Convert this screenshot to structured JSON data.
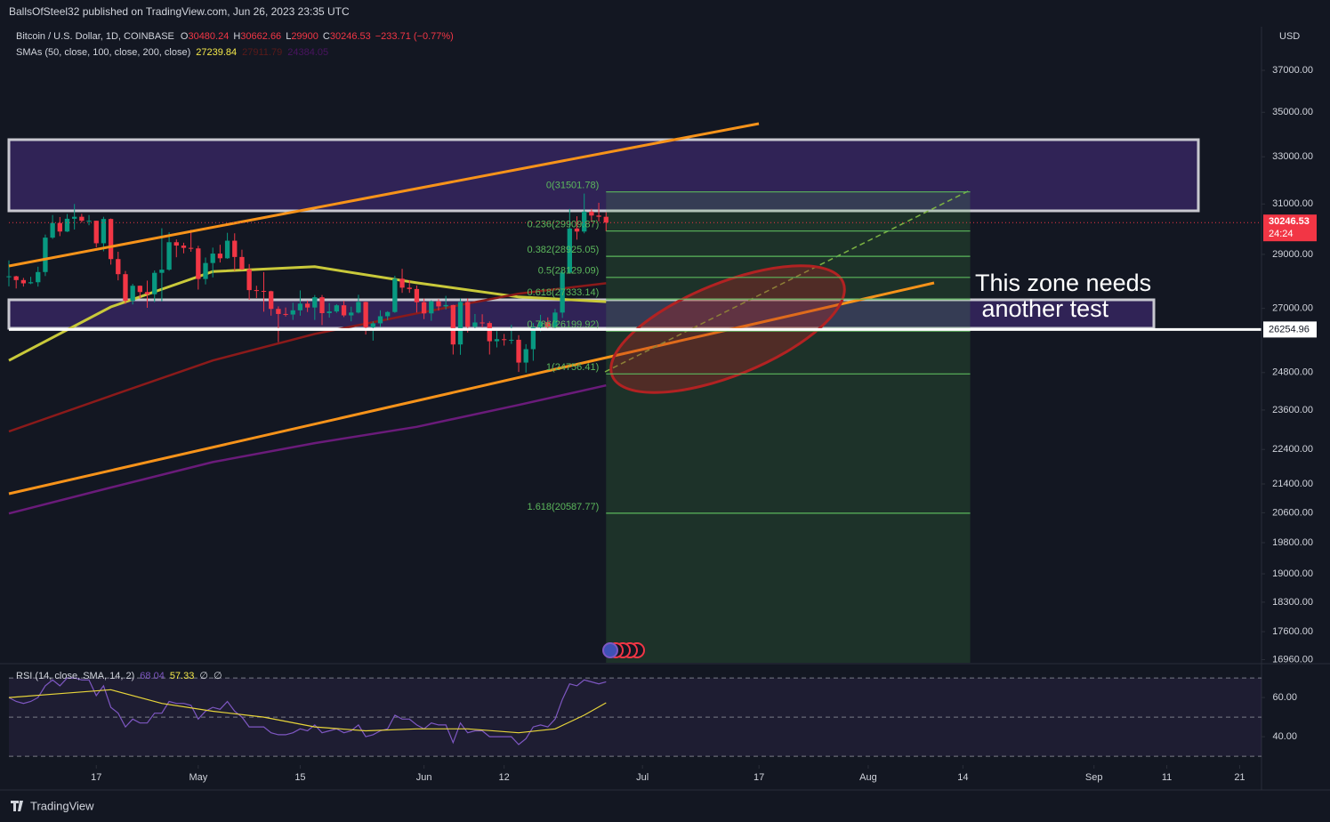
{
  "header": {
    "publisher": "BallsOfSteel32 published on TradingView.com, Jun 26, 2023 23:35 UTC",
    "logo": "TradingView"
  },
  "chart_data": {
    "type": "candlestick",
    "title": "Bitcoin / U.S. Dollar, 1D, COINBASE",
    "ohlc_labels": [
      "O",
      "H",
      "L",
      "C"
    ],
    "change": "−233.71 (−0.77%)",
    "currency": "USD",
    "countdown": "24:24",
    "up_color": "#089981",
    "down_color": "#f23645",
    "log_scale": true,
    "grid": false,
    "xlim": [
      "2023-04-05",
      "2023-09-24"
    ],
    "ylim": [
      16890,
      39200
    ],
    "xticks": [
      {
        "value": "2023-04-17",
        "label": "17"
      },
      {
        "value": "2023-05-01",
        "label": "May"
      },
      {
        "value": "2023-05-15",
        "label": "15"
      },
      {
        "value": "2023-06-01",
        "label": "Jun"
      },
      {
        "value": "2023-06-12",
        "label": "12"
      },
      {
        "value": "2023-07-01",
        "label": "Jul"
      },
      {
        "value": "2023-07-17",
        "label": "17"
      },
      {
        "value": "2023-08-01",
        "label": "Aug"
      },
      {
        "value": "2023-08-14",
        "label": "14"
      },
      {
        "value": "2023-09-01",
        "label": "Sep"
      },
      {
        "value": "2023-09-11",
        "label": "11"
      },
      {
        "value": "2023-09-21",
        "label": "21"
      }
    ],
    "yticks": [
      {
        "value": 37000,
        "label": "37000.00"
      },
      {
        "value": 35000,
        "label": "35000.00"
      },
      {
        "value": 33000,
        "label": "33000.00"
      },
      {
        "value": 31000,
        "label": "31000.00"
      },
      {
        "value": 29000,
        "label": "29000.00"
      },
      {
        "value": 27000,
        "label": "27000.00"
      },
      {
        "value": 24800,
        "label": "24800.00"
      },
      {
        "value": 23600,
        "label": "23600.00"
      },
      {
        "value": 22400,
        "label": "22400.00"
      },
      {
        "value": 21400,
        "label": "21400.00"
      },
      {
        "value": 20600,
        "label": "20600.00"
      },
      {
        "value": 19800,
        "label": "19800.00"
      },
      {
        "value": 19000,
        "label": "19000.00"
      },
      {
        "value": 18300,
        "label": "18300.00"
      },
      {
        "value": 17600,
        "label": "17600.00"
      },
      {
        "value": 16960,
        "label": "16960.00"
      }
    ],
    "x": [
      "2023-04-05",
      "2023-04-06",
      "2023-04-07",
      "2023-04-08",
      "2023-04-09",
      "2023-04-10",
      "2023-04-11",
      "2023-04-12",
      "2023-04-13",
      "2023-04-14",
      "2023-04-15",
      "2023-04-16",
      "2023-04-17",
      "2023-04-18",
      "2023-04-19",
      "2023-04-20",
      "2023-04-21",
      "2023-04-22",
      "2023-04-23",
      "2023-04-24",
      "2023-04-25",
      "2023-04-26",
      "2023-04-27",
      "2023-04-28",
      "2023-04-29",
      "2023-04-30",
      "2023-05-01",
      "2023-05-02",
      "2023-05-03",
      "2023-05-04",
      "2023-05-05",
      "2023-05-06",
      "2023-05-07",
      "2023-05-08",
      "2023-05-09",
      "2023-05-10",
      "2023-05-11",
      "2023-05-12",
      "2023-05-13",
      "2023-05-14",
      "2023-05-15",
      "2023-05-16",
      "2023-05-17",
      "2023-05-18",
      "2023-05-19",
      "2023-05-20",
      "2023-05-21",
      "2023-05-22",
      "2023-05-23",
      "2023-05-24",
      "2023-05-25",
      "2023-05-26",
      "2023-05-27",
      "2023-05-28",
      "2023-05-29",
      "2023-05-30",
      "2023-05-31",
      "2023-06-01",
      "2023-06-02",
      "2023-06-03",
      "2023-06-04",
      "2023-06-05",
      "2023-06-06",
      "2023-06-07",
      "2023-06-08",
      "2023-06-09",
      "2023-06-10",
      "2023-06-11",
      "2023-06-12",
      "2023-06-13",
      "2023-06-14",
      "2023-06-15",
      "2023-06-16",
      "2023-06-17",
      "2023-06-18",
      "2023-06-19",
      "2023-06-20",
      "2023-06-21",
      "2023-06-22",
      "2023-06-23",
      "2023-06-24",
      "2023-06-25",
      "2023-06-26"
    ],
    "ohlc": [
      [
        28150,
        28770,
        27800,
        28170
      ],
      [
        28170,
        28190,
        27720,
        28030
      ],
      [
        28030,
        28110,
        27790,
        27910
      ],
      [
        27910,
        28150,
        27880,
        27950
      ],
      [
        27950,
        28530,
        27790,
        28330
      ],
      [
        28330,
        29770,
        28180,
        29650
      ],
      [
        29650,
        30550,
        29600,
        30230
      ],
      [
        30230,
        30470,
        29710,
        29890
      ],
      [
        29890,
        30590,
        29870,
        30400
      ],
      [
        30400,
        31000,
        29970,
        30480
      ],
      [
        30480,
        30600,
        30250,
        30320
      ],
      [
        30320,
        30550,
        30140,
        30320
      ],
      [
        30320,
        30320,
        29270,
        29430
      ],
      [
        29430,
        30480,
        29120,
        30390
      ],
      [
        30390,
        30410,
        28610,
        28820
      ],
      [
        28820,
        29100,
        28020,
        28250
      ],
      [
        28250,
        28370,
        27160,
        27270
      ],
      [
        27270,
        27890,
        27140,
        27820
      ],
      [
        27820,
        27830,
        27360,
        27590
      ],
      [
        27590,
        28010,
        27020,
        27510
      ],
      [
        27510,
        28390,
        27220,
        28300
      ],
      [
        28300,
        30020,
        27250,
        28420
      ],
      [
        28420,
        29860,
        28380,
        29470
      ],
      [
        29470,
        29580,
        28890,
        29340
      ],
      [
        29340,
        29450,
        29040,
        29250
      ],
      [
        29250,
        29960,
        29100,
        29230
      ],
      [
        29230,
        29330,
        27680,
        28070
      ],
      [
        28070,
        28880,
        27870,
        28670
      ],
      [
        28670,
        29260,
        28130,
        29030
      ],
      [
        29030,
        29370,
        28690,
        28850
      ],
      [
        28850,
        29840,
        28830,
        29530
      ],
      [
        29530,
        29820,
        28380,
        28900
      ],
      [
        28900,
        29180,
        28410,
        28430
      ],
      [
        28430,
        28630,
        27310,
        27660
      ],
      [
        27660,
        27820,
        27370,
        27630
      ],
      [
        27630,
        28330,
        26880,
        27620
      ],
      [
        27620,
        27640,
        26740,
        26980
      ],
      [
        26980,
        27070,
        25820,
        26800
      ],
      [
        26800,
        27030,
        26710,
        26780
      ],
      [
        26780,
        27200,
        26590,
        26930
      ],
      [
        26930,
        27650,
        26740,
        27170
      ],
      [
        27170,
        27280,
        26870,
        27030
      ],
      [
        27030,
        27480,
        26590,
        27400
      ],
      [
        27400,
        27480,
        26410,
        26830
      ],
      [
        26830,
        27190,
        26670,
        26890
      ],
      [
        26890,
        27150,
        26840,
        27110
      ],
      [
        27110,
        27270,
        26690,
        26750
      ],
      [
        26750,
        27060,
        26540,
        26850
      ],
      [
        26850,
        27490,
        26820,
        27230
      ],
      [
        27230,
        27240,
        26080,
        26330
      ],
      [
        26330,
        26540,
        25870,
        26470
      ],
      [
        26470,
        26930,
        26340,
        26720
      ],
      [
        26720,
        26900,
        26580,
        26870
      ],
      [
        26870,
        28190,
        26840,
        28080
      ],
      [
        28080,
        28450,
        27560,
        27750
      ],
      [
        27750,
        28030,
        27560,
        27700
      ],
      [
        27700,
        27830,
        26850,
        27220
      ],
      [
        27220,
        27350,
        26620,
        26820
      ],
      [
        26820,
        27290,
        26560,
        27250
      ],
      [
        27250,
        27330,
        26920,
        27070
      ],
      [
        27070,
        27450,
        26960,
        27120
      ],
      [
        27120,
        27130,
        25400,
        25740
      ],
      [
        25740,
        27350,
        25390,
        27230
      ],
      [
        27230,
        27360,
        26150,
        26350
      ],
      [
        26350,
        26800,
        26220,
        26500
      ],
      [
        26500,
        26790,
        26330,
        26480
      ],
      [
        26480,
        26540,
        25400,
        25850
      ],
      [
        25850,
        26200,
        25640,
        25920
      ],
      [
        25920,
        26100,
        25700,
        25900
      ],
      [
        25900,
        26420,
        25760,
        25900
      ],
      [
        25900,
        26060,
        24820,
        25130
      ],
      [
        25130,
        25750,
        24800,
        25580
      ],
      [
        25580,
        26480,
        25190,
        26330
      ],
      [
        26330,
        26770,
        26190,
        26510
      ],
      [
        26510,
        26680,
        26290,
        26340
      ],
      [
        26340,
        26980,
        26270,
        26850
      ],
      [
        26850,
        28400,
        26660,
        28310
      ],
      [
        28310,
        30800,
        28270,
        30010
      ],
      [
        30010,
        30500,
        29570,
        29890
      ],
      [
        29890,
        31430,
        29820,
        30690
      ],
      [
        30690,
        30800,
        30260,
        30530
      ],
      [
        30530,
        31050,
        30290,
        30480
      ],
      [
        30480.24,
        30662.66,
        29900,
        30246.53
      ]
    ],
    "sma_legend": "SMAs (50, close, 100, close, 200, close)",
    "smas": [
      {
        "color": "#c9c93a",
        "x": [
          "2023-04-05",
          "2023-04-19",
          "2023-05-03",
          "2023-05-17",
          "2023-05-31",
          "2023-06-14",
          "2023-06-26"
        ],
        "values": [
          25200,
          27050,
          28350,
          28530,
          27930,
          27410,
          27239.84
        ]
      },
      {
        "color": "#8b1a1a",
        "x": [
          "2023-04-05",
          "2023-04-19",
          "2023-05-03",
          "2023-05-17",
          "2023-05-31",
          "2023-06-14",
          "2023-06-26"
        ],
        "values": [
          22940,
          24050,
          25200,
          26100,
          26820,
          27530,
          27911.79
        ]
      },
      {
        "color": "#6a1b7a",
        "x": [
          "2023-04-05",
          "2023-04-19",
          "2023-05-03",
          "2023-05-17",
          "2023-05-31",
          "2023-06-14",
          "2023-06-26"
        ],
        "values": [
          20580,
          21300,
          22030,
          22590,
          23080,
          23760,
          24384.05
        ]
      }
    ],
    "horizontal_line": 26254.96,
    "fib": {
      "color": "#5cb85c",
      "x": [
        "2023-06-26",
        "2023-08-15"
      ],
      "levels": [
        {
          "value": 31501.78,
          "label": "0(31501.78)"
        },
        {
          "value": 29909.87,
          "label": "0.236(29909.87)"
        },
        {
          "value": 28925.05,
          "label": "0.382(28925.05)"
        },
        {
          "value": 28129.09,
          "label": "0.5(28129.09)"
        },
        {
          "value": 27333.14,
          "label": "0.618(27333.14)"
        },
        {
          "value": 26199.92,
          "label": "0.786(26199.92)"
        },
        {
          "value": 24756.41,
          "label": "1(24756.41)"
        },
        {
          "value": 20587.77,
          "label": "1.618(20587.77)"
        }
      ]
    },
    "annotation": [
      "This zone needs",
      " another test"
    ],
    "rsi": {
      "legend": "RSI (14, close, SMA, 14, 2)",
      "na_labels": [
        "∅",
        "∅"
      ],
      "color": "#7e57c2",
      "ylim": [
        26.4,
        76.4
      ],
      "yticks": [
        {
          "value": 60,
          "label": "60.00"
        },
        {
          "value": 40,
          "label": "40.00"
        }
      ],
      "levels": [
        70,
        50,
        30
      ],
      "values": [
        60,
        58,
        57,
        58,
        60,
        66,
        69,
        66,
        70,
        70,
        69,
        69,
        61,
        66,
        55,
        52,
        45,
        49,
        47,
        47,
        52,
        52,
        58,
        57,
        57,
        56,
        49,
        53,
        55,
        54,
        58,
        53,
        50,
        45,
        45,
        45,
        42,
        41,
        41,
        42,
        44,
        43,
        46,
        42,
        43,
        44,
        42,
        43,
        46,
        40,
        41,
        43,
        44,
        51,
        49,
        49,
        46,
        44,
        47,
        46,
        46,
        37,
        47,
        42,
        43,
        43,
        40,
        40,
        40,
        40,
        36,
        39,
        45,
        46,
        45,
        49,
        59,
        67,
        66,
        69,
        68,
        67,
        68.04
      ],
      "sma": {
        "color": "#e8d53a",
        "x": [
          "2023-04-05",
          "2023-04-12",
          "2023-04-19",
          "2023-04-26",
          "2023-05-03",
          "2023-05-10",
          "2023-05-17",
          "2023-05-24",
          "2023-05-31",
          "2023-06-07",
          "2023-06-14",
          "2023-06-19",
          "2023-06-23",
          "2023-06-26"
        ],
        "values": [
          60,
          62,
          64,
          57,
          53,
          50,
          45,
          43,
          44,
          44,
          42,
          44,
          51,
          57.33
        ]
      }
    }
  }
}
